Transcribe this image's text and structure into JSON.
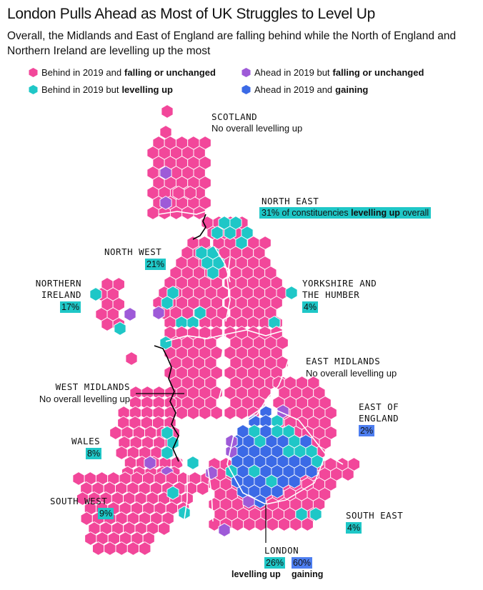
{
  "title": "London Pulls Ahead as Most of UK Struggles to Level Up",
  "subtitle": "Overall, the Midlands and East of England are falling behind while the North of England and Northern Ireland are levelling up the most",
  "colors": {
    "pink": "#f2479a",
    "purple": "#9e5ad8",
    "teal": "#1fc7c7",
    "blue": "#3b6ae6",
    "border": "#ffffff",
    "outline": "#000000"
  },
  "legend": [
    {
      "prefix": "Behind in 2019 and",
      "bold": "falling or unchanged",
      "color": "pink",
      "icon": "pink-hex-icon"
    },
    {
      "prefix": "Ahead in 2019 but",
      "bold": "falling or unchanged",
      "color": "purple",
      "icon": "purple-hex-icon"
    },
    {
      "prefix": "Behind in 2019 but",
      "bold": "levelling up",
      "color": "teal",
      "icon": "teal-hex-icon"
    },
    {
      "prefix": "Ahead in 2019 and",
      "bold": "gaining",
      "color": "blue",
      "icon": "blue-hex-icon"
    }
  ],
  "regions": {
    "scotland": {
      "name": "SCOTLAND",
      "note": "No overall levelling up"
    },
    "north_east": {
      "name": "NORTH EAST",
      "note_prefix": "31% of constituencies",
      "note_bold": "levelling up",
      "note_suffix": "overall"
    },
    "north_west": {
      "name": "NORTH WEST",
      "value": "21%"
    },
    "northern_ireland": {
      "name_line1": "NORTHERN",
      "name_line2": "IRELAND",
      "value": "17%"
    },
    "yorkshire": {
      "name_line1": "YORKSHIRE AND",
      "name_line2": "THE HUMBER",
      "value": "4%"
    },
    "east_midlands": {
      "name": "EAST MIDLANDS",
      "note": "No overall levelling up"
    },
    "west_midlands": {
      "name": "WEST MIDLANDS",
      "note": "No overall levelling up"
    },
    "east_of_england": {
      "name_line1": "EAST OF",
      "name_line2": "ENGLAND",
      "value": "2%"
    },
    "wales": {
      "name": "WALES",
      "value": "8%"
    },
    "south_west": {
      "name": "SOUTH WEST",
      "value": "9%"
    },
    "south_east": {
      "name": "SOUTH EAST",
      "value": "4%"
    },
    "london": {
      "name": "LONDON",
      "value_levelling": "26%",
      "value_gaining": "60%",
      "label_levelling": "levelling up",
      "label_gaining": "gaining"
    }
  }
}
